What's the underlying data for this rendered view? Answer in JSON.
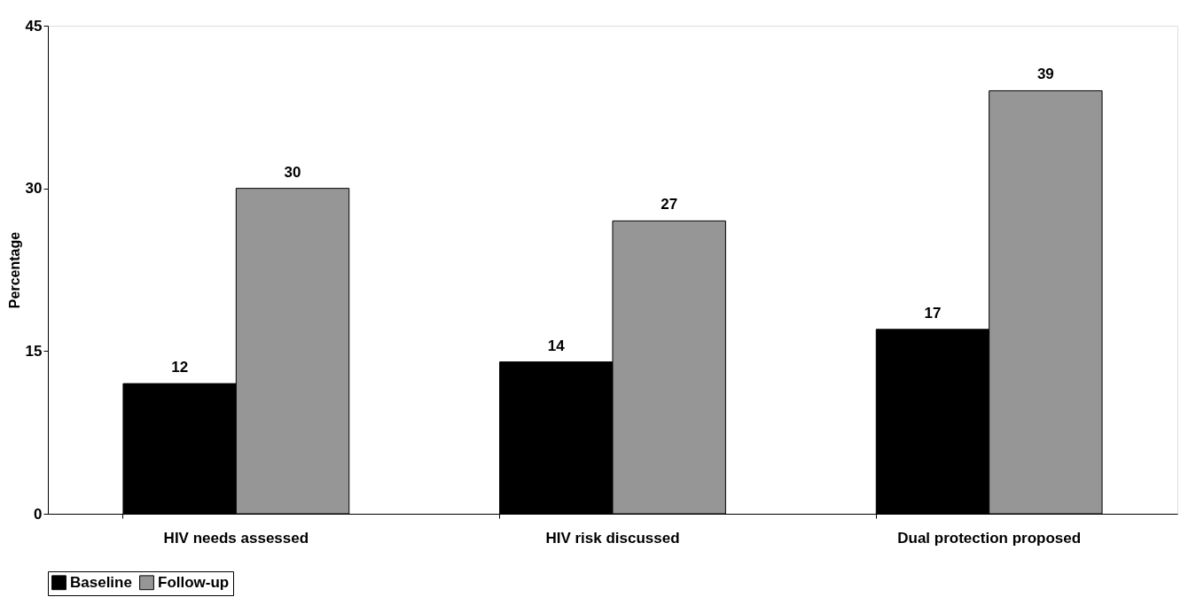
{
  "chart_data": {
    "type": "bar",
    "ylabel": "Percentage",
    "categories": [
      "HIV needs assessed",
      "HIV risk discussed",
      "Dual protection proposed"
    ],
    "series": [
      {
        "name": "Baseline",
        "color": "#000000",
        "values": [
          12,
          14,
          17
        ]
      },
      {
        "name": "Follow-up",
        "color": "#969696",
        "values": [
          30,
          27,
          39
        ]
      }
    ],
    "ylim": [
      0,
      45
    ],
    "yticks": [
      0,
      15,
      30,
      45
    ],
    "grid": false,
    "legend": "bottom",
    "data_labels": true
  }
}
